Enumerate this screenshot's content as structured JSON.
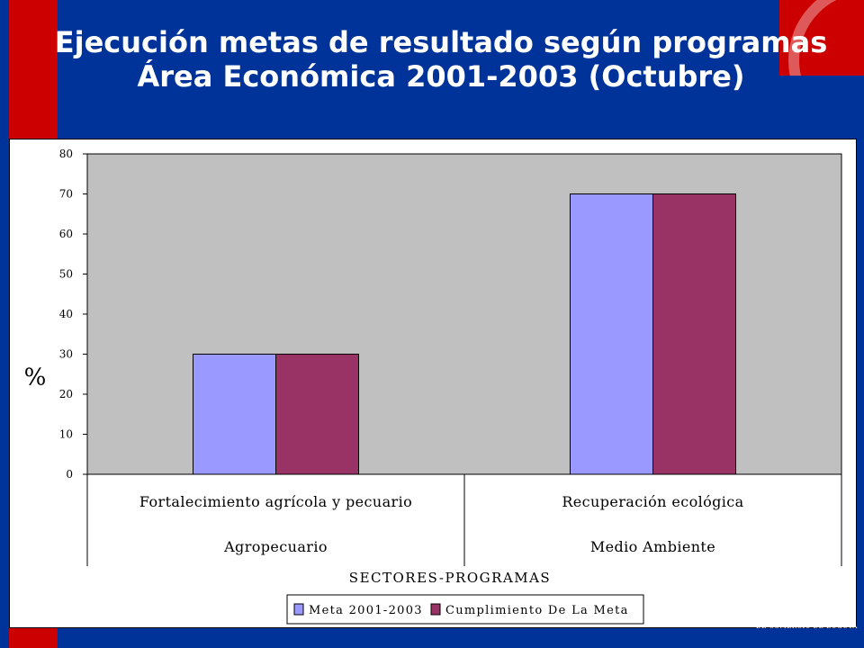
{
  "page": {
    "title_line1": "Ejecución metas de resultado según programas",
    "title_line2": "Área Económica 2001-2003 (Octubre)",
    "brand_text": "DE COMERCIO DE BOGOTA"
  },
  "colors": {
    "background": "#003399",
    "accent_red": "#cc0000",
    "plot_area": "#c0c0c0",
    "series_meta": "#9999ff",
    "series_cumplimiento": "#993366"
  },
  "chart_data": {
    "type": "bar",
    "categories": [
      {
        "program": "Fortalecimiento agrícola y pecuario",
        "sector": "Agropecuario"
      },
      {
        "program": "Recuperación ecológica",
        "sector": "Medio Ambiente"
      }
    ],
    "series": [
      {
        "name": "Meta 2001-2003",
        "values": [
          30,
          70
        ],
        "color": "#9999ff"
      },
      {
        "name": "Cumplimiento De La Meta",
        "values": [
          30,
          70
        ],
        "color": "#993366"
      }
    ],
    "title": "",
    "xlabel": "SECTORES-PROGRAMAS",
    "ylabel": "%",
    "ylim": [
      0,
      80
    ],
    "yticks": [
      0,
      10,
      20,
      30,
      40,
      50,
      60,
      70,
      80
    ],
    "grid": false,
    "legend_position": "bottom"
  }
}
